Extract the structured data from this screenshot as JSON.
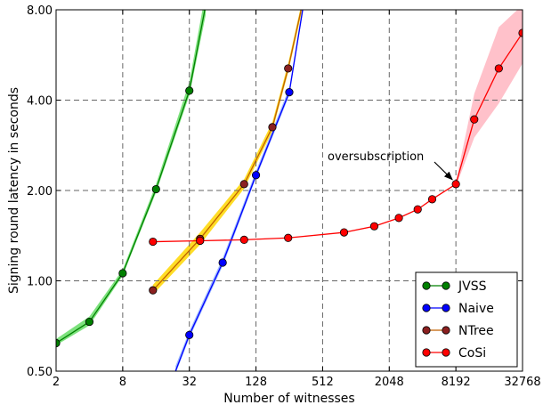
{
  "chart_data": {
    "type": "line",
    "xlabel": "Number of witnesses",
    "ylabel": "Signing round latency in seconds",
    "x_scale": "log2",
    "y_scale": "log2",
    "xlim": [
      2,
      32768
    ],
    "ylim": [
      0.5,
      8.0
    ],
    "x_ticks": [
      2,
      8,
      32,
      128,
      512,
      2048,
      8192,
      32768
    ],
    "x_tick_labels": [
      "2",
      "8",
      "32",
      "128",
      "512",
      "2048",
      "8192",
      "32768"
    ],
    "y_ticks": [
      0.5,
      1.0,
      2.0,
      4.0,
      8.0
    ],
    "y_tick_labels": [
      "0.50",
      "1.00",
      "2.00",
      "4.00",
      "8.00"
    ],
    "grid": true,
    "legend_position": "bottom-right",
    "series": [
      {
        "name": "JVSS",
        "color": "#008000",
        "band_color": "#66dd66",
        "points": [
          {
            "x": 2,
            "y": 0.62
          },
          {
            "x": 4,
            "y": 0.73
          },
          {
            "x": 8,
            "y": 1.06
          },
          {
            "x": 16,
            "y": 2.02
          },
          {
            "x": 32,
            "y": 4.3
          }
        ],
        "extension": [
          {
            "x": 32,
            "y": 4.3
          },
          {
            "x": 45,
            "y": 8.3
          }
        ],
        "band": {
          "x": [
            2,
            4,
            8,
            16,
            32,
            45
          ],
          "low": [
            0.61,
            0.71,
            1.04,
            1.97,
            4.15,
            7.7
          ],
          "high": [
            0.64,
            0.76,
            1.09,
            2.1,
            4.6,
            9.2
          ]
        }
      },
      {
        "name": "Naive",
        "color": "#0000ff",
        "band_color": "#88aaff",
        "points": [
          {
            "x": 32,
            "y": 0.66
          },
          {
            "x": 64,
            "y": 1.15
          },
          {
            "x": 128,
            "y": 2.25
          },
          {
            "x": 256,
            "y": 4.25
          }
        ],
        "extension": [
          {
            "x": 24,
            "y": 0.5
          },
          {
            "x": 32,
            "y": 0.66
          },
          {
            "x": 64,
            "y": 1.15
          },
          {
            "x": 128,
            "y": 2.25
          },
          {
            "x": 256,
            "y": 4.25
          },
          {
            "x": 340,
            "y": 8.1
          }
        ],
        "band": {
          "x": [
            24,
            32,
            64,
            128,
            256,
            340
          ],
          "low": [
            0.49,
            0.645,
            1.12,
            2.2,
            4.15,
            7.9
          ],
          "high": [
            0.52,
            0.68,
            1.19,
            2.32,
            4.4,
            8.4
          ]
        }
      },
      {
        "name": "NTree",
        "color": "#8b2020",
        "band_color": "#ffd700",
        "line_color": "#c06000",
        "points": [
          {
            "x": 15,
            "y": 0.93
          },
          {
            "x": 40,
            "y": 1.38
          },
          {
            "x": 100,
            "y": 2.1
          },
          {
            "x": 180,
            "y": 3.25
          },
          {
            "x": 250,
            "y": 5.1
          }
        ],
        "extension": [
          {
            "x": 250,
            "y": 5.1
          },
          {
            "x": 330,
            "y": 8.1
          }
        ],
        "band": {
          "x": [
            15,
            40,
            100,
            180,
            250,
            330
          ],
          "low": [
            0.9,
            1.32,
            2.03,
            3.15,
            4.95,
            7.8
          ],
          "high": [
            0.97,
            1.45,
            2.18,
            3.38,
            5.3,
            8.4
          ]
        }
      },
      {
        "name": "CoSi",
        "color": "#ff0000",
        "band_color": "#ffb6c1",
        "points": [
          {
            "x": 15,
            "y": 1.35
          },
          {
            "x": 40,
            "y": 1.36
          },
          {
            "x": 100,
            "y": 1.37
          },
          {
            "x": 250,
            "y": 1.39
          },
          {
            "x": 800,
            "y": 1.45
          },
          {
            "x": 1500,
            "y": 1.52
          },
          {
            "x": 2500,
            "y": 1.62
          },
          {
            "x": 3700,
            "y": 1.73
          },
          {
            "x": 5000,
            "y": 1.87
          },
          {
            "x": 8192,
            "y": 2.1
          },
          {
            "x": 12000,
            "y": 3.45
          },
          {
            "x": 20000,
            "y": 5.1
          },
          {
            "x": 32768,
            "y": 6.7
          }
        ],
        "extension": [],
        "band": {
          "x": [
            8192,
            12000,
            20000,
            32768
          ],
          "low": [
            2.06,
            3.0,
            3.9,
            5.3
          ],
          "high": [
            2.14,
            4.2,
            7.0,
            8.3
          ]
        }
      }
    ],
    "annotations": [
      {
        "text": "oversubscription",
        "x": 8192,
        "y": 2.1
      }
    ]
  }
}
